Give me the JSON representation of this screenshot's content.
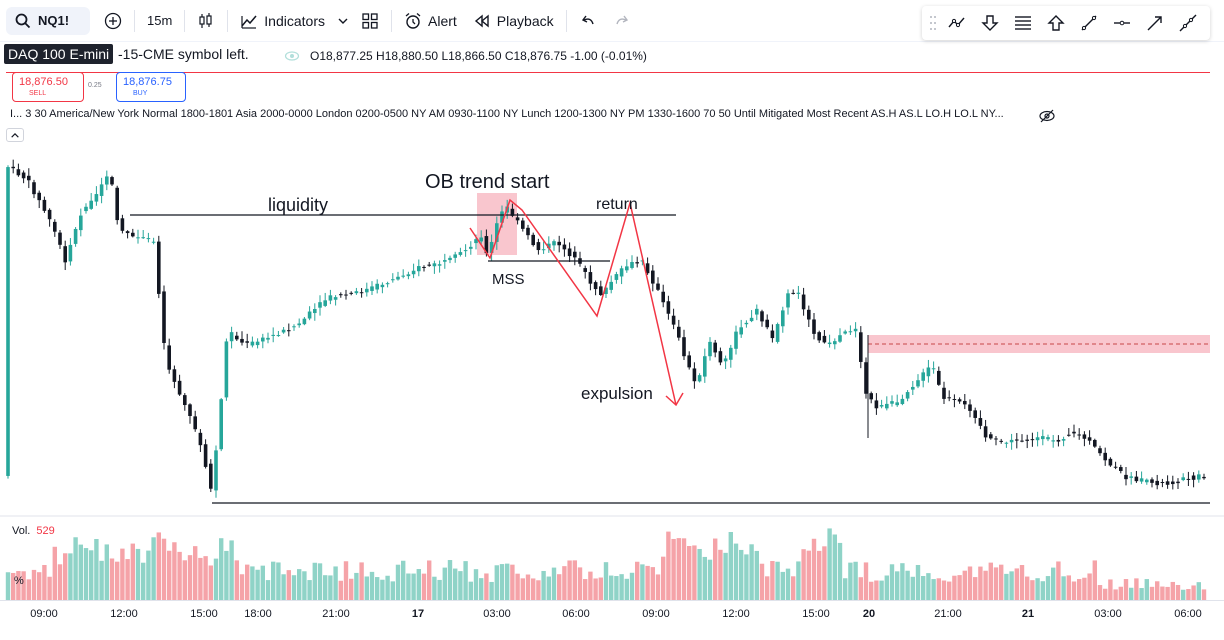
{
  "toolbar": {
    "symbol": "NQ1!",
    "interval": "15m",
    "indicators_label": "Indicators",
    "alert_label": "Alert",
    "playback_label": "Playback"
  },
  "legend": {
    "symbol_tooltip": "DAQ 100 E-mini",
    "symbol_rest": "-15-CME symbol left.",
    "ohlc": "O18,877.25 H18,880.50 L18,866.50 C18,876.75 -1.00 (-0.01%)"
  },
  "trade": {
    "sell_price": "18,876.50",
    "sell_label": "SELL",
    "spread": "0.25",
    "buy_price": "18,876.75",
    "buy_label": "BUY"
  },
  "indicator_legend": "I... 3 30 America/New York Normal 1800-1801 Asia 2000-0000 London 0200-0500 NY AM 0930-1100 NY Lunch 1200-1300 NY PM 1330-1600 70 50 Until Mitigated Most Recent AS.H AS.L LO.H LO.L NY...",
  "annotations": {
    "ob_trend_start": "OB trend start",
    "liquidity": "liquidity",
    "return": "return",
    "mss": "MSS",
    "expulsion": "expulsion"
  },
  "volume": {
    "label": "Vol.",
    "value": "529",
    "pct": "%"
  },
  "time_axis": [
    {
      "label": "09:00",
      "bold": false
    },
    {
      "label": "12:00",
      "bold": false
    },
    {
      "label": "15:00",
      "bold": false
    },
    {
      "label": "18:00",
      "bold": false
    },
    {
      "label": "21:00",
      "bold": false
    },
    {
      "label": "17",
      "bold": true
    },
    {
      "label": "03:00",
      "bold": false
    },
    {
      "label": "06:00",
      "bold": false
    },
    {
      "label": "09:00",
      "bold": false
    },
    {
      "label": "12:00",
      "bold": false
    },
    {
      "label": "15:00",
      "bold": false
    },
    {
      "label": "20",
      "bold": true
    },
    {
      "label": "21:00",
      "bold": false
    },
    {
      "label": "21",
      "bold": true
    },
    {
      "label": "03:00",
      "bold": false
    },
    {
      "label": "06:00",
      "bold": false
    }
  ],
  "colors": {
    "up": "#26a69a",
    "down": "#131722",
    "vol_up": "#8fd3c7",
    "vol_down": "#f5a3a8",
    "annotation_red": "#f23645",
    "ob_zone": "#f8bcc6"
  },
  "icons": {
    "search": "search-icon",
    "compare": "plus-circle-icon",
    "chart_type": "candles-icon",
    "indicators": "indicators-icon",
    "layout": "layout-grid-icon",
    "alert": "alarm-clock-icon",
    "playback": "rewind-icon",
    "undo": "undo-icon",
    "redo": "redo-icon"
  }
}
